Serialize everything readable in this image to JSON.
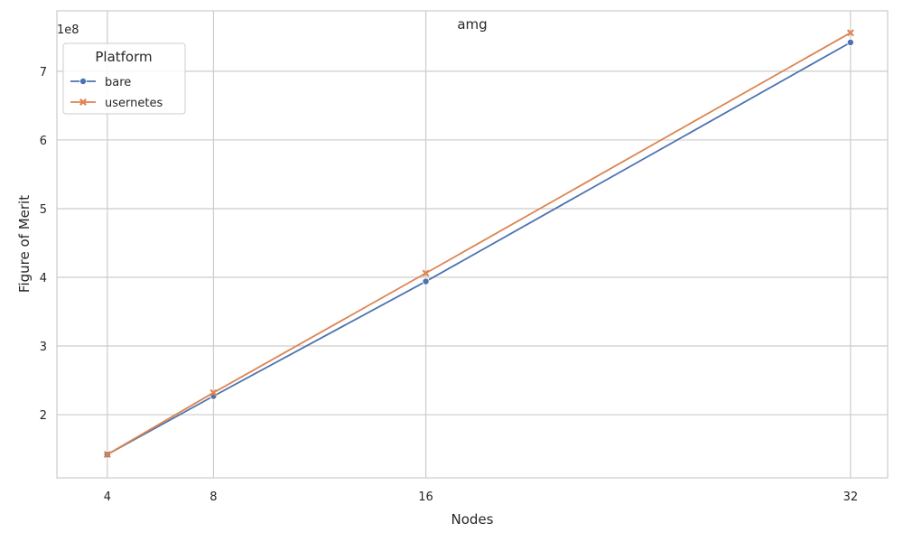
{
  "chart_data": {
    "type": "line",
    "title": "amg",
    "xlabel": "Nodes",
    "ylabel": "Figure of Merit",
    "y_offset_label": "1e8",
    "x": [
      4,
      8,
      16,
      32
    ],
    "x_tick_labels": [
      "4",
      "8",
      "16",
      "32"
    ],
    "xlim": [
      2.1,
      33.4
    ],
    "ylim": [
      108000000,
      788000000
    ],
    "y_ticks": [
      200000000,
      300000000,
      400000000,
      500000000,
      600000000,
      700000000
    ],
    "y_tick_labels": [
      "2",
      "3",
      "4",
      "5",
      "6",
      "7"
    ],
    "grid": true,
    "legend": {
      "title": "Platform",
      "position": "top-left"
    },
    "series": [
      {
        "name": "bare",
        "color": "#4c72b0",
        "marker": "circle",
        "values": [
          142000000,
          227000000,
          394000000,
          742000000
        ]
      },
      {
        "name": "usernetes",
        "color": "#dd8452",
        "marker": "x",
        "values": [
          142000000,
          232000000,
          406000000,
          756000000
        ]
      }
    ]
  }
}
